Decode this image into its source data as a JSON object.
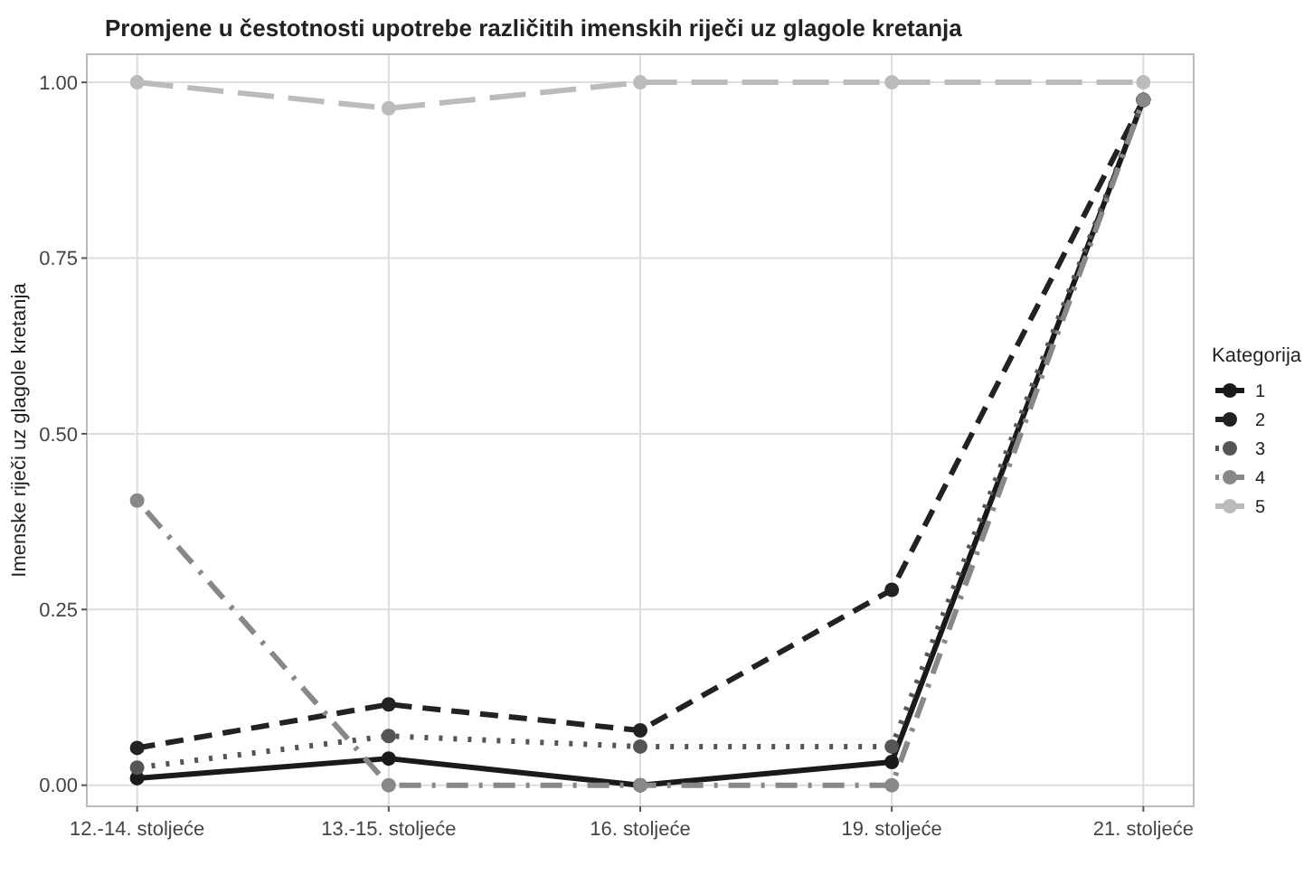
{
  "chart_data": {
    "type": "line",
    "title": "Promjene u čestotnosti upotrebe različitih imenskih riječi uz glagole kretanja",
    "ylabel": "Imenske riječi uz glagole kretanja",
    "legend_title": "Kategorija",
    "categories": [
      "12.-14. stoljeće",
      "13.-15. stoljeće",
      "16. stoljeće",
      "19. stoljeće",
      "21. stoljeće"
    ],
    "ylim": [
      -0.03,
      1.04
    ],
    "yticks": [
      {
        "value": 0,
        "label": "0.00"
      },
      {
        "value": 0.25,
        "label": "0.25"
      },
      {
        "value": 0.5,
        "label": "0.50"
      },
      {
        "value": 0.75,
        "label": "0.75"
      },
      {
        "value": 1,
        "label": "1.00"
      }
    ],
    "grid": true,
    "legend": "right",
    "marker": "circle",
    "series": [
      {
        "name": "1",
        "color": "#1a1a1a",
        "line_style": "solid",
        "values": [
          0.01,
          0.038,
          0.0,
          0.033,
          0.975
        ]
      },
      {
        "name": "2",
        "color": "#222222",
        "line_style": "dashed",
        "values": [
          0.053,
          0.115,
          0.078,
          0.278,
          0.975
        ]
      },
      {
        "name": "3",
        "color": "#555555",
        "line_style": "dotted",
        "values": [
          0.025,
          0.07,
          0.055,
          0.055,
          0.975
        ]
      },
      {
        "name": "4",
        "color": "#888888",
        "line_style": "dotdash",
        "values": [
          0.405,
          0.0,
          0.0,
          0.0,
          0.975
        ]
      },
      {
        "name": "5",
        "color": "#bbbbbb",
        "line_style": "longdash",
        "values": [
          1.0,
          0.963,
          1.0,
          1.0,
          1.0
        ]
      }
    ]
  }
}
